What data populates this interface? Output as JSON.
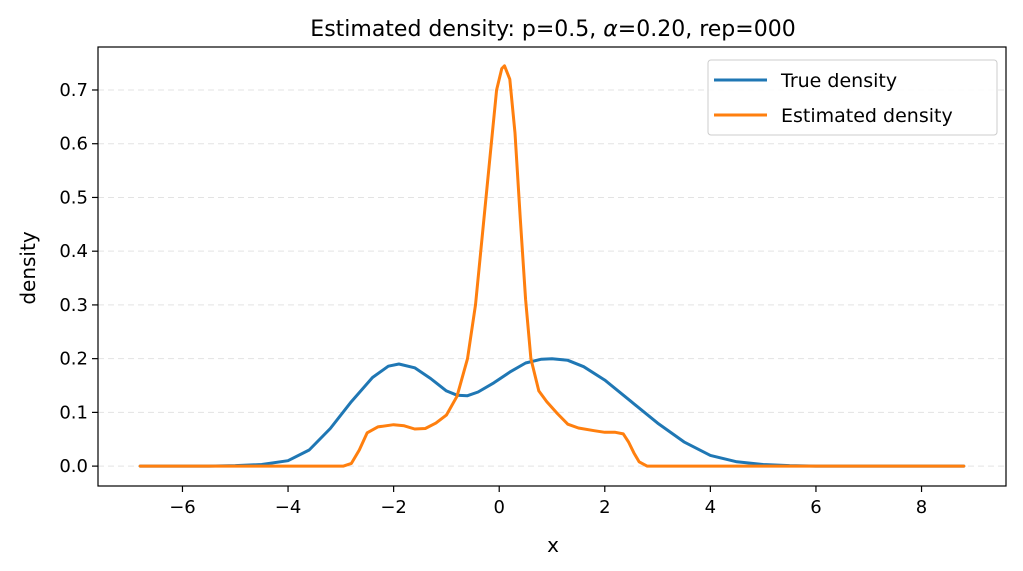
{
  "chart_data": {
    "type": "line",
    "title_prefix": "Estimated density: p=0.5, ",
    "title_alpha": "α",
    "title_suffix": "=0.20, rep=000",
    "xlabel": "x",
    "ylabel": "density",
    "xlim": [
      -7.6,
      9.6
    ],
    "ylim": [
      -0.037,
      0.78
    ],
    "xticks": [
      -6,
      -4,
      -2,
      0,
      2,
      4,
      6,
      8
    ],
    "xtick_labels": [
      "−6",
      "−4",
      "−2",
      "0",
      "2",
      "4",
      "6",
      "8"
    ],
    "yticks": [
      0.0,
      0.1,
      0.2,
      0.3,
      0.4,
      0.5,
      0.6,
      0.7
    ],
    "ytick_labels": [
      "0.0",
      "0.1",
      "0.2",
      "0.3",
      "0.4",
      "0.5",
      "0.6",
      "0.7"
    ],
    "grid": "horizontal dashed",
    "legend_position": "top-right",
    "series": [
      {
        "name": "True density",
        "color": "#1f77b4",
        "points": [
          [
            -6.8,
            0.0
          ],
          [
            -5.5,
            0.0
          ],
          [
            -5.0,
            0.001
          ],
          [
            -4.5,
            0.003
          ],
          [
            -4.0,
            0.01
          ],
          [
            -3.6,
            0.03
          ],
          [
            -3.2,
            0.07
          ],
          [
            -2.8,
            0.12
          ],
          [
            -2.4,
            0.165
          ],
          [
            -2.1,
            0.186
          ],
          [
            -1.9,
            0.19
          ],
          [
            -1.6,
            0.183
          ],
          [
            -1.3,
            0.163
          ],
          [
            -1.0,
            0.14
          ],
          [
            -0.8,
            0.132
          ],
          [
            -0.6,
            0.131
          ],
          [
            -0.4,
            0.138
          ],
          [
            -0.1,
            0.155
          ],
          [
            0.2,
            0.175
          ],
          [
            0.5,
            0.192
          ],
          [
            0.8,
            0.199
          ],
          [
            1.0,
            0.2
          ],
          [
            1.3,
            0.197
          ],
          [
            1.6,
            0.185
          ],
          [
            2.0,
            0.16
          ],
          [
            2.5,
            0.12
          ],
          [
            3.0,
            0.08
          ],
          [
            3.5,
            0.045
          ],
          [
            4.0,
            0.02
          ],
          [
            4.5,
            0.008
          ],
          [
            5.0,
            0.003
          ],
          [
            5.5,
            0.001
          ],
          [
            6.0,
            0.0
          ],
          [
            8.8,
            0.0
          ]
        ]
      },
      {
        "name": "Estimated density",
        "color": "#ff7f0e",
        "points": [
          [
            -6.8,
            0.0
          ],
          [
            -2.95,
            0.0
          ],
          [
            -2.8,
            0.005
          ],
          [
            -2.65,
            0.03
          ],
          [
            -2.5,
            0.062
          ],
          [
            -2.3,
            0.073
          ],
          [
            -2.0,
            0.077
          ],
          [
            -1.8,
            0.075
          ],
          [
            -1.6,
            0.069
          ],
          [
            -1.4,
            0.07
          ],
          [
            -1.2,
            0.08
          ],
          [
            -1.0,
            0.095
          ],
          [
            -0.8,
            0.13
          ],
          [
            -0.6,
            0.2
          ],
          [
            -0.45,
            0.3
          ],
          [
            -0.3,
            0.45
          ],
          [
            -0.15,
            0.6
          ],
          [
            -0.05,
            0.7
          ],
          [
            0.05,
            0.74
          ],
          [
            0.1,
            0.745
          ],
          [
            0.2,
            0.72
          ],
          [
            0.3,
            0.62
          ],
          [
            0.4,
            0.46
          ],
          [
            0.5,
            0.31
          ],
          [
            0.6,
            0.2
          ],
          [
            0.75,
            0.14
          ],
          [
            0.9,
            0.12
          ],
          [
            1.1,
            0.098
          ],
          [
            1.3,
            0.078
          ],
          [
            1.5,
            0.071
          ],
          [
            1.8,
            0.066
          ],
          [
            2.0,
            0.063
          ],
          [
            2.2,
            0.063
          ],
          [
            2.35,
            0.06
          ],
          [
            2.45,
            0.045
          ],
          [
            2.55,
            0.025
          ],
          [
            2.65,
            0.008
          ],
          [
            2.8,
            0.0
          ],
          [
            8.8,
            0.0
          ]
        ]
      }
    ]
  }
}
